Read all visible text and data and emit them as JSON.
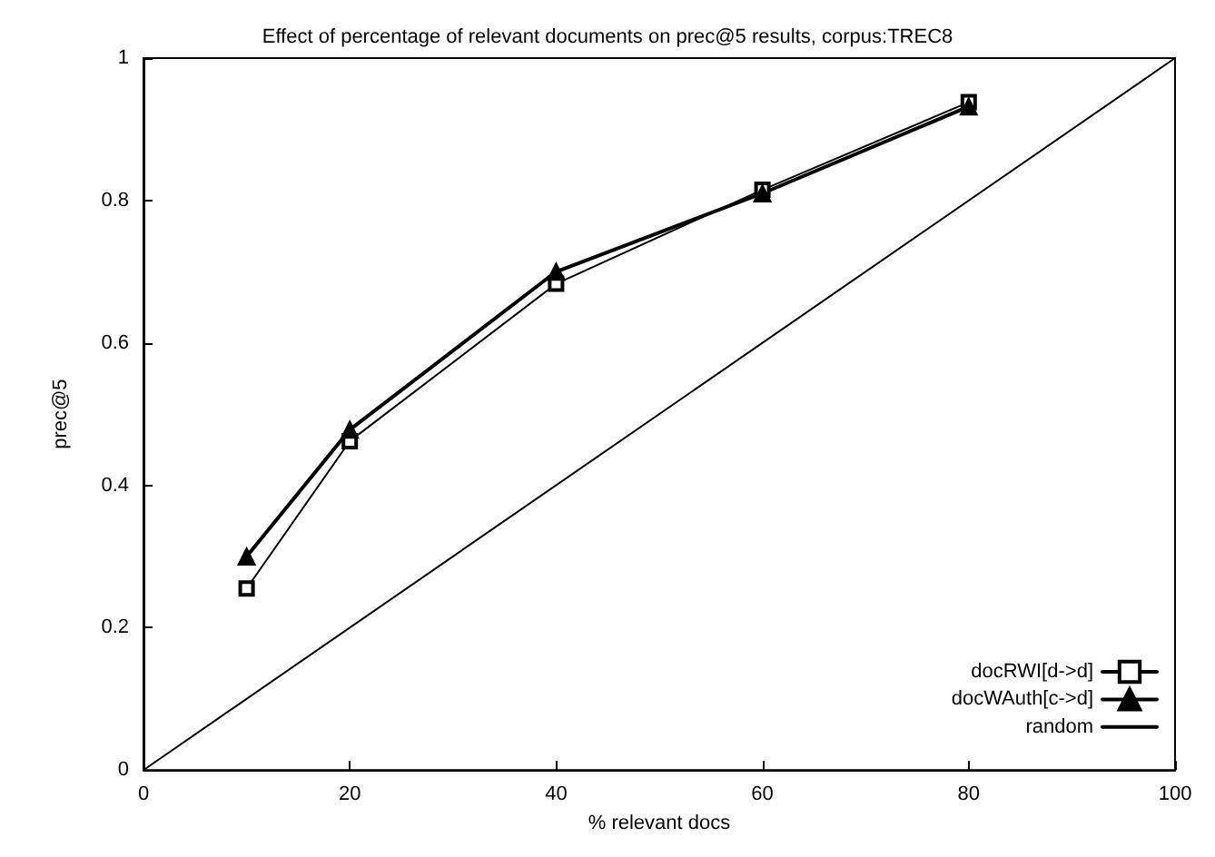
{
  "chart_data": {
    "type": "line",
    "title": "Effect of percentage of relevant documents on prec@5 results, corpus:TREC8",
    "xlabel": "% relevant docs",
    "ylabel": "prec@5",
    "series": [
      {
        "name": "docRWI[d->d]",
        "color": "#000000",
        "marker": "square",
        "x": [
          10,
          20,
          40,
          60,
          80
        ],
        "values": [
          0.255,
          0.462,
          0.683,
          0.815,
          0.938
        ]
      },
      {
        "name": "docWAuth[c->d]",
        "color": "#000000",
        "marker": "triangle",
        "x": [
          10,
          20,
          40,
          60,
          80
        ],
        "values": [
          0.3,
          0.478,
          0.7,
          0.81,
          0.932
        ]
      },
      {
        "name": "random",
        "color": "#000000",
        "marker": "none",
        "x": [
          0,
          100
        ],
        "values": [
          0,
          1
        ]
      }
    ],
    "xlim": [
      0,
      100
    ],
    "xticks": [
      0,
      20,
      40,
      60,
      80,
      100
    ],
    "ylim": [
      0,
      1
    ],
    "yticks": [
      0,
      0.2,
      0.4,
      0.6,
      0.8,
      1
    ],
    "grid": false,
    "legend": "bottom right",
    "line_style": "solid"
  }
}
